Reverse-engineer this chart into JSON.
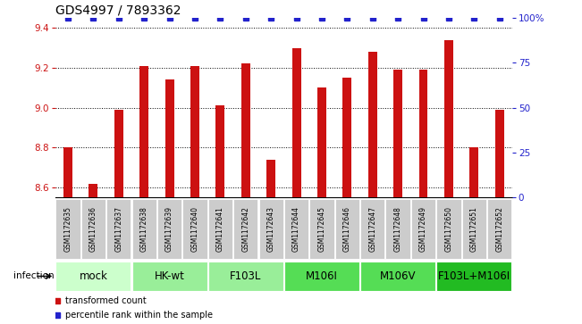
{
  "title": "GDS4997 / 7893362",
  "samples": [
    "GSM1172635",
    "GSM1172636",
    "GSM1172637",
    "GSM1172638",
    "GSM1172639",
    "GSM1172640",
    "GSM1172641",
    "GSM1172642",
    "GSM1172643",
    "GSM1172644",
    "GSM1172645",
    "GSM1172646",
    "GSM1172647",
    "GSM1172648",
    "GSM1172649",
    "GSM1172650",
    "GSM1172651",
    "GSM1172652"
  ],
  "bar_values": [
    8.8,
    8.62,
    8.99,
    9.21,
    9.14,
    9.21,
    9.01,
    9.22,
    8.74,
    9.3,
    9.1,
    9.15,
    9.28,
    9.19,
    9.19,
    9.34,
    8.8,
    8.99
  ],
  "bar_color": "#cc1111",
  "percentile_color": "#2222cc",
  "ylim_left": [
    8.55,
    9.45
  ],
  "ylim_right": [
    0,
    100
  ],
  "yticks_left": [
    8.6,
    8.8,
    9.0,
    9.2,
    9.4
  ],
  "yticks_right": [
    0,
    25,
    50,
    75,
    100
  ],
  "ytick_labels_right": [
    "0",
    "25",
    "50",
    "75",
    "100%"
  ],
  "groups": [
    {
      "label": "mock",
      "start": 0,
      "end": 2,
      "color": "#ccffcc"
    },
    {
      "label": "HK-wt",
      "start": 3,
      "end": 5,
      "color": "#99ee99"
    },
    {
      "label": "F103L",
      "start": 6,
      "end": 8,
      "color": "#99ee99"
    },
    {
      "label": "M106I",
      "start": 9,
      "end": 11,
      "color": "#55dd55"
    },
    {
      "label": "M106V",
      "start": 12,
      "end": 14,
      "color": "#55dd55"
    },
    {
      "label": "F103L+M106I",
      "start": 15,
      "end": 17,
      "color": "#22bb22"
    }
  ],
  "infection_label": "infection",
  "legend_items": [
    {
      "label": "transformed count",
      "color": "#cc1111"
    },
    {
      "label": "percentile rank within the sample",
      "color": "#2222cc"
    }
  ],
  "background_color": "#ffffff",
  "sample_box_color": "#cccccc",
  "bar_bottom": 8.55,
  "bar_width": 0.35,
  "title_fontsize": 10,
  "tick_fontsize": 7.5,
  "sample_fontsize": 5.5,
  "group_fontsize": 8.5,
  "legend_fontsize": 7
}
